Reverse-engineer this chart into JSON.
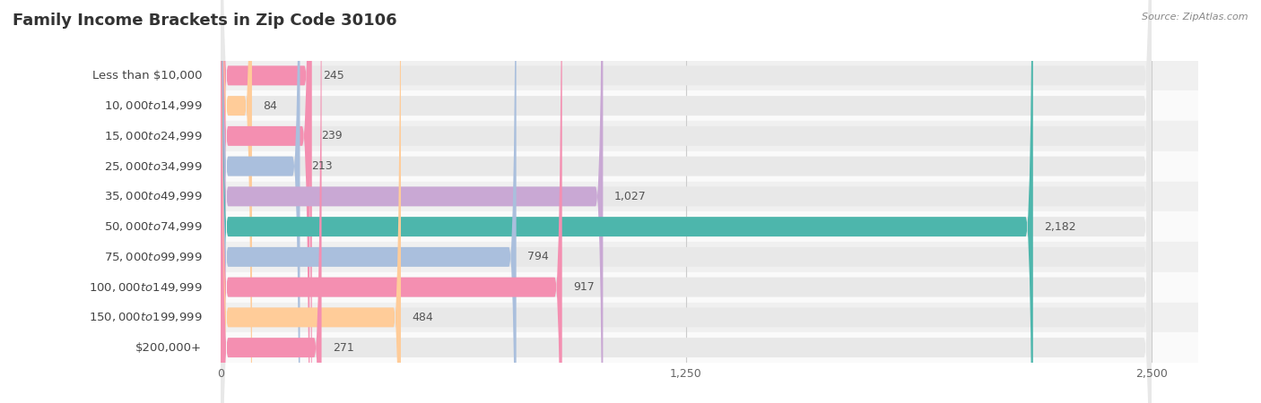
{
  "title": "Family Income Brackets in Zip Code 30106",
  "source": "Source: ZipAtlas.com",
  "categories": [
    "Less than $10,000",
    "$10,000 to $14,999",
    "$15,000 to $24,999",
    "$25,000 to $34,999",
    "$35,000 to $49,999",
    "$50,000 to $74,999",
    "$75,000 to $99,999",
    "$100,000 to $149,999",
    "$150,000 to $199,999",
    "$200,000+"
  ],
  "values": [
    245,
    84,
    239,
    213,
    1027,
    2182,
    794,
    917,
    484,
    271
  ],
  "bar_colors": [
    "#F48FB1",
    "#FFCC99",
    "#F48FB1",
    "#AABFDD",
    "#C9A8D4",
    "#4DB6AC",
    "#AABFDD",
    "#F48FB1",
    "#FFCC99",
    "#F48FB1"
  ],
  "xlim": [
    0,
    2500
  ],
  "xticks": [
    0,
    1250,
    2500
  ],
  "xtick_labels": [
    "0",
    "1,250",
    "2,500"
  ],
  "bar_bg_color": "#e8e8e8",
  "row_colors": [
    "#f0f0f0",
    "#fafafa"
  ],
  "title_fontsize": 13,
  "label_fontsize": 9.5,
  "value_fontsize": 9,
  "bar_height": 0.65,
  "figure_bg": "#ffffff",
  "label_color": "#444444",
  "value_color": "#555555",
  "source_color": "#888888",
  "title_color": "#333333",
  "grid_color": "#cccccc"
}
